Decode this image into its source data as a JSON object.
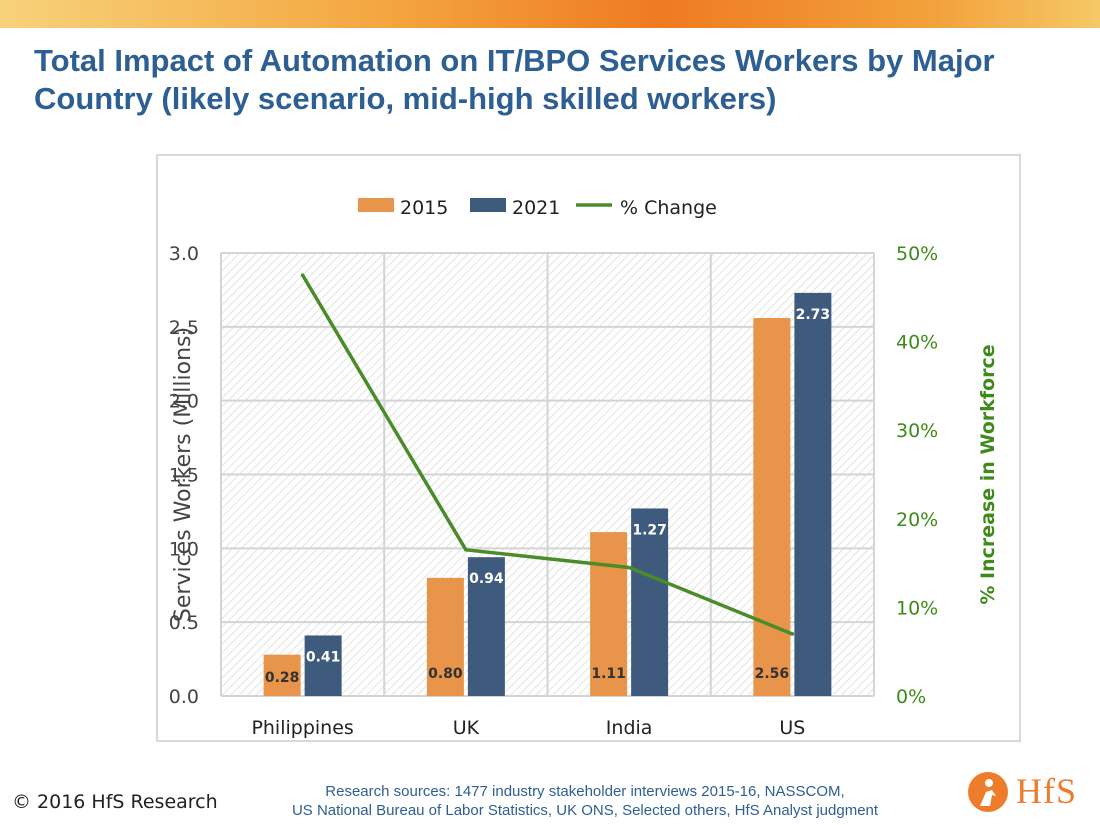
{
  "slide": {
    "title": "Total Impact of Automation on IT/BPO Services Workers by Major Country (likely scenario, mid-high skilled workers)",
    "copyright": "© 2016 HfS Research",
    "sources_line1": "Research sources: 1477 industry stakeholder interviews 2015-16, NASSCOM,",
    "sources_line2": "US National Bureau of Labor Statistics, UK ONS,  Selected others, HfS Analyst judgment",
    "logo_text": "HfS"
  },
  "colors": {
    "series_2015": "#e8944a",
    "series_2021": "#3e5a7c",
    "series_change": "#4a8c2a",
    "title": "#2e5f93",
    "right_axis": "#3f8a1a",
    "brand_orange": "#ee7d2b"
  },
  "chart_data": {
    "type": "bar",
    "categories": [
      "Philippines",
      "UK",
      "India",
      "US"
    ],
    "series": [
      {
        "name": "2015",
        "type": "bar",
        "axis": "left",
        "values": [
          0.28,
          0.8,
          1.11,
          2.56
        ],
        "data_labels": [
          "0.28",
          "0.80",
          "1.11",
          "2.56"
        ]
      },
      {
        "name": "2021",
        "type": "bar",
        "axis": "left",
        "values": [
          0.41,
          0.94,
          1.27,
          2.73
        ],
        "data_labels": [
          "0.41",
          "0.94",
          "1.27",
          "2.73"
        ]
      },
      {
        "name": "% Change",
        "type": "line",
        "axis": "right",
        "values": [
          47.5,
          16.5,
          14.5,
          7.0
        ]
      }
    ],
    "ylabel": "Services Workers (Millions)",
    "y2label": "% Increase in Workforce",
    "ylim": [
      0,
      3.0
    ],
    "yticks": [
      "0.0",
      "0.5",
      "1.0",
      "1.5",
      "2.0",
      "2.5",
      "3.0"
    ],
    "y2lim": [
      0,
      50
    ],
    "y2ticks": [
      "0%",
      "10%",
      "20%",
      "30%",
      "40%",
      "50%"
    ],
    "legend_position": "top",
    "grid": true
  }
}
